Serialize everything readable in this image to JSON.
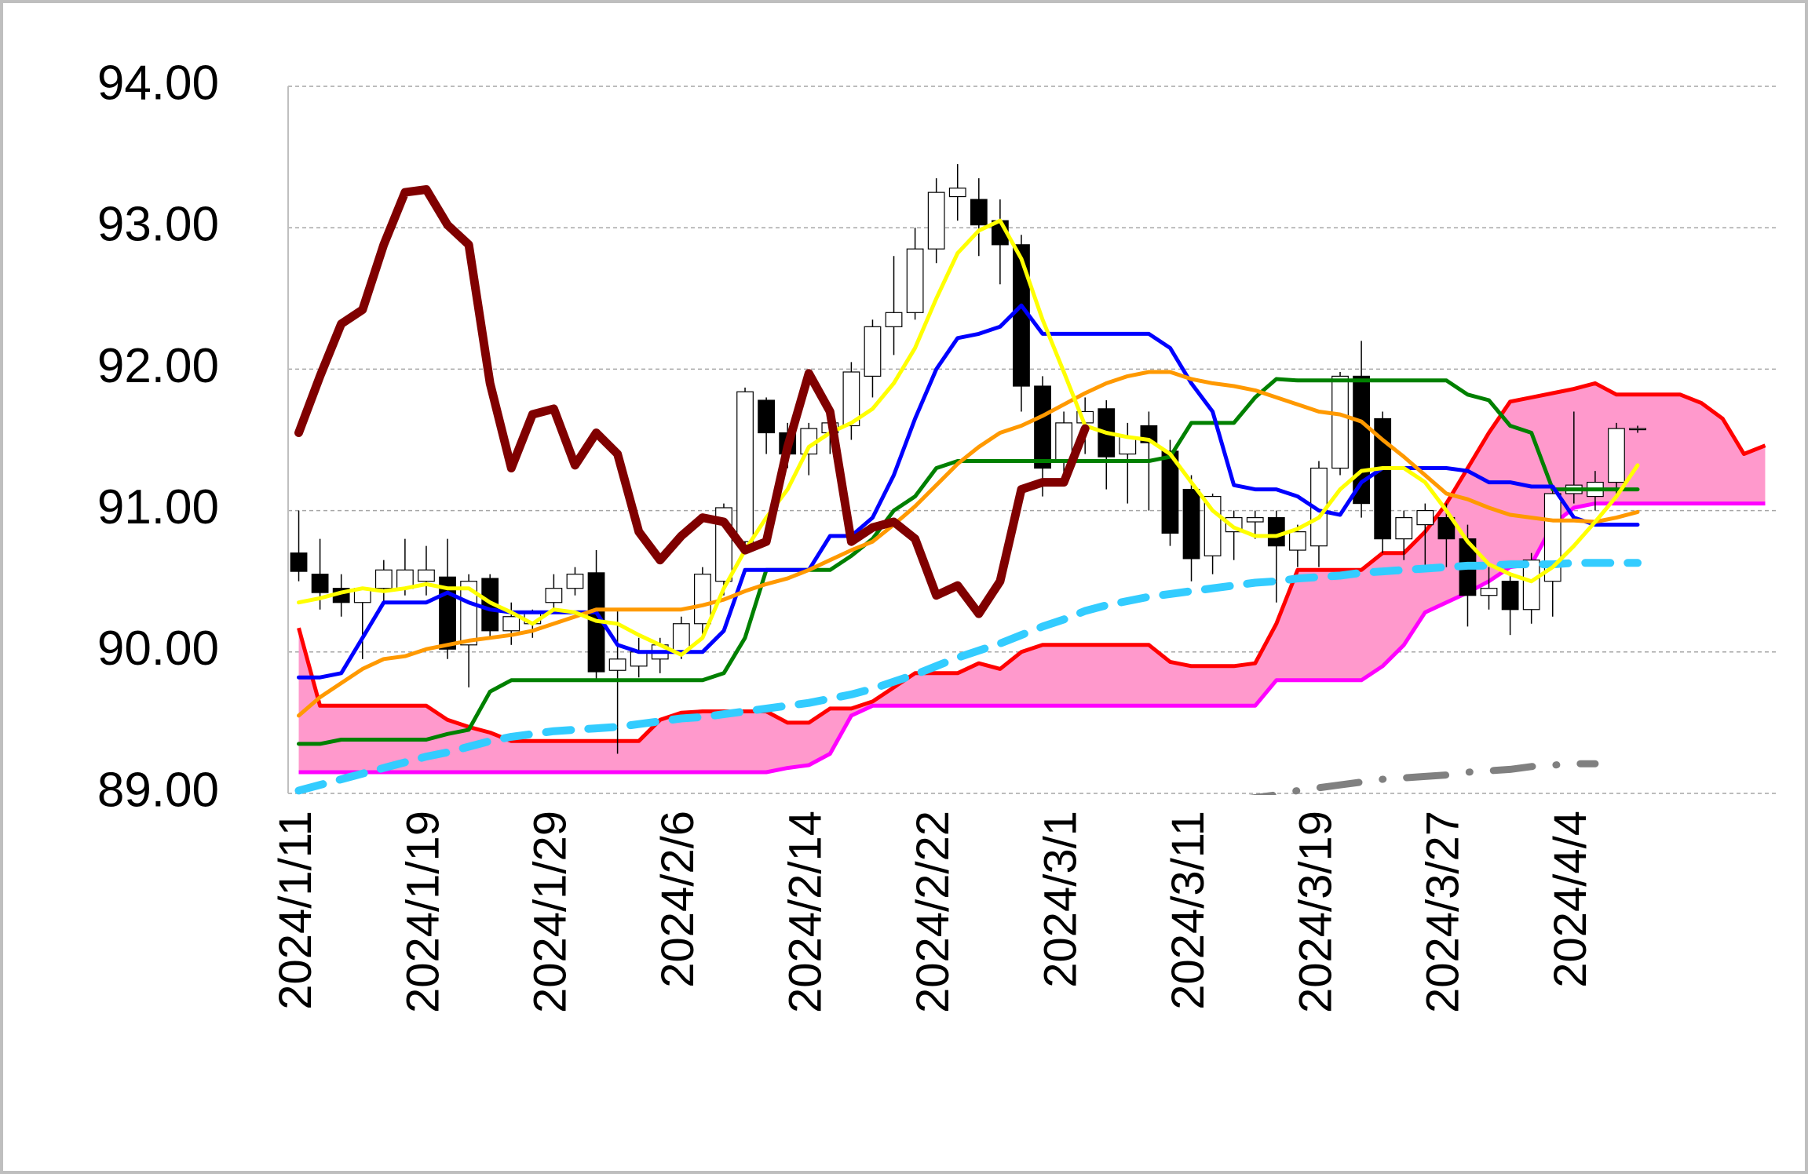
{
  "chart_data": {
    "type": "candlestick",
    "categories": [
      "2024/1/11",
      null,
      null,
      null,
      null,
      null,
      "2024/1/19",
      null,
      null,
      null,
      null,
      null,
      "2024/1/29",
      null,
      null,
      null,
      null,
      null,
      "2024/2/6",
      null,
      null,
      null,
      null,
      null,
      "2024/2/14",
      null,
      null,
      null,
      null,
      null,
      "2024/2/22",
      null,
      null,
      null,
      null,
      null,
      "2024/3/1",
      null,
      null,
      null,
      null,
      null,
      "2024/3/11",
      null,
      null,
      null,
      null,
      null,
      "2024/3/19",
      null,
      null,
      null,
      null,
      null,
      "2024/3/27",
      null,
      null,
      null,
      null,
      null,
      "2024/4/4",
      null,
      null,
      null,
      null,
      null,
      null,
      null,
      null,
      null
    ],
    "ylim": [
      89,
      94
    ],
    "yticks": [
      {
        "value": 89,
        "label": "89.00"
      },
      {
        "value": 90,
        "label": "90.00"
      },
      {
        "value": 91,
        "label": "91.00"
      },
      {
        "value": 92,
        "label": "92.00"
      },
      {
        "value": 93,
        "label": "93.00"
      },
      {
        "value": 94,
        "label": "94.00"
      }
    ],
    "grid": true,
    "cloud": {
      "color": "#ff99cc",
      "upper_color": "#ff0000",
      "lower_color": "#ff00ff",
      "upper": [
        90.17,
        89.62,
        89.62,
        89.62,
        89.62,
        89.62,
        89.62,
        89.52,
        89.47,
        89.43,
        89.37,
        89.37,
        89.37,
        89.37,
        89.37,
        89.37,
        89.37,
        89.52,
        89.57,
        89.58,
        89.58,
        89.58,
        89.58,
        89.5,
        89.5,
        89.6,
        89.6,
        89.65,
        89.75,
        89.85,
        89.85,
        89.85,
        89.92,
        89.88,
        90.0,
        90.05,
        90.05,
        90.05,
        90.05,
        90.05,
        90.05,
        89.93,
        89.9,
        89.9,
        89.9,
        89.92,
        90.2,
        90.58,
        90.58,
        90.58,
        90.58,
        90.7,
        90.7,
        90.85,
        91.05,
        91.3,
        91.55,
        91.77,
        91.8,
        91.83,
        91.86,
        91.9,
        91.82,
        91.82,
        91.82,
        91.82,
        91.76,
        91.65,
        91.4,
        91.46
      ],
      "lower": [
        89.15,
        89.15,
        89.15,
        89.15,
        89.15,
        89.15,
        89.15,
        89.15,
        89.15,
        89.15,
        89.15,
        89.15,
        89.15,
        89.15,
        89.15,
        89.15,
        89.15,
        89.15,
        89.15,
        89.15,
        89.15,
        89.15,
        89.15,
        89.18,
        89.2,
        89.28,
        89.55,
        89.62,
        89.62,
        89.62,
        89.62,
        89.62,
        89.62,
        89.62,
        89.62,
        89.62,
        89.62,
        89.62,
        89.62,
        89.62,
        89.62,
        89.62,
        89.62,
        89.62,
        89.62,
        89.62,
        89.8,
        89.8,
        89.8,
        89.8,
        89.8,
        89.9,
        90.05,
        90.28,
        90.35,
        90.42,
        90.5,
        90.6,
        90.62,
        90.9,
        91.02,
        91.05,
        91.05,
        91.05,
        91.05,
        91.05,
        91.05,
        91.05,
        91.05,
        91.05
      ]
    },
    "candles": {
      "up_color": "#ffffff",
      "down_color": "#000000",
      "open": [
        90.7,
        90.55,
        90.45,
        90.35,
        90.45,
        90.45,
        90.5,
        90.53,
        90.05,
        90.52,
        90.15,
        90.2,
        90.35,
        90.45,
        90.56,
        89.87,
        89.9,
        89.95,
        90.0,
        90.2,
        90.5,
        90.78,
        91.78,
        91.55,
        91.4,
        91.55,
        91.6,
        91.95,
        92.3,
        92.4,
        92.85,
        93.22,
        93.2,
        93.05,
        92.88,
        91.88,
        91.35,
        91.62,
        91.72,
        91.4,
        91.6,
        91.42,
        91.15,
        90.68,
        90.85,
        90.92,
        90.95,
        90.72,
        90.75,
        91.3,
        91.95,
        91.65,
        90.8,
        90.9,
        90.95,
        90.8,
        90.4,
        90.5,
        90.3,
        90.5,
        91.12,
        91.1,
        91.2,
        91.58,
        null,
        null,
        null,
        null,
        null,
        null
      ],
      "high": [
        91.0,
        90.8,
        90.55,
        90.45,
        90.65,
        90.8,
        90.75,
        90.8,
        90.55,
        90.55,
        90.35,
        90.3,
        90.55,
        90.6,
        90.72,
        90.3,
        90.1,
        90.1,
        90.25,
        90.6,
        91.05,
        91.87,
        91.8,
        91.62,
        91.62,
        91.65,
        92.05,
        92.35,
        92.8,
        93.0,
        93.35,
        93.45,
        93.35,
        93.2,
        92.95,
        91.95,
        91.7,
        91.8,
        91.78,
        91.62,
        91.7,
        91.5,
        91.25,
        91.12,
        91.0,
        91.0,
        91.0,
        90.9,
        91.35,
        91.98,
        92.2,
        91.7,
        91.0,
        91.05,
        91.05,
        90.9,
        90.6,
        90.55,
        90.7,
        91.15,
        91.7,
        91.28,
        91.62,
        91.6,
        null,
        null,
        null,
        null,
        null,
        null
      ],
      "low": [
        90.5,
        90.3,
        90.25,
        89.95,
        90.35,
        90.4,
        90.4,
        89.95,
        89.75,
        90.1,
        90.05,
        90.1,
        90.3,
        90.4,
        89.8,
        89.28,
        89.82,
        89.85,
        89.95,
        90.1,
        90.4,
        90.7,
        91.4,
        91.3,
        91.25,
        91.4,
        91.5,
        91.8,
        92.1,
        92.35,
        92.75,
        93.05,
        92.8,
        92.6,
        91.7,
        91.1,
        91.2,
        91.4,
        91.15,
        91.05,
        91.0,
        90.75,
        90.5,
        90.55,
        90.65,
        90.8,
        90.35,
        90.6,
        90.6,
        91.25,
        90.95,
        90.7,
        90.65,
        90.6,
        90.6,
        90.18,
        90.3,
        90.12,
        90.2,
        90.25,
        91.05,
        91.0,
        91.1,
        91.55,
        null,
        null,
        null,
        null,
        null,
        null
      ],
      "close": [
        90.57,
        90.42,
        90.35,
        90.45,
        90.58,
        90.58,
        90.58,
        90.02,
        90.5,
        90.15,
        90.25,
        90.28,
        90.45,
        90.55,
        89.86,
        89.95,
        90.0,
        90.05,
        90.2,
        90.55,
        91.02,
        91.84,
        91.55,
        91.4,
        91.58,
        91.62,
        91.98,
        92.3,
        92.4,
        92.85,
        93.25,
        93.28,
        93.02,
        92.88,
        91.88,
        91.3,
        91.62,
        91.7,
        91.38,
        91.52,
        91.48,
        90.84,
        90.66,
        91.1,
        90.95,
        90.95,
        90.75,
        90.85,
        91.3,
        91.95,
        91.05,
        90.8,
        90.95,
        91.0,
        90.8,
        90.4,
        90.45,
        90.3,
        90.65,
        91.12,
        91.18,
        91.2,
        91.58,
        91.58,
        null,
        null,
        null,
        null,
        null,
        null
      ]
    },
    "series": [
      {
        "color": "#808080",
        "style": "dashed",
        "values": [
          null,
          null,
          null,
          null,
          null,
          null,
          null,
          null,
          null,
          null,
          null,
          null,
          null,
          null,
          null,
          null,
          null,
          null,
          null,
          null,
          null,
          null,
          null,
          null,
          null,
          null,
          null,
          null,
          null,
          null,
          null,
          null,
          null,
          null,
          null,
          null,
          null,
          null,
          null,
          null,
          null,
          null,
          null,
          null,
          88.95,
          88.97,
          88.99,
          89.02,
          89.04,
          89.06,
          89.08,
          89.1,
          89.11,
          89.12,
          89.13,
          89.15,
          89.16,
          89.17,
          89.19,
          89.2,
          89.21,
          89.21,
          null,
          null,
          null,
          null,
          null,
          null,
          null,
          null
        ]
      },
      {
        "color": "#33ccff",
        "style": "dashed",
        "values": [
          89.02,
          89.06,
          89.1,
          89.14,
          89.18,
          89.22,
          89.26,
          89.29,
          89.33,
          89.37,
          89.4,
          89.42,
          89.44,
          89.45,
          89.46,
          89.47,
          89.49,
          89.51,
          89.53,
          89.54,
          89.56,
          89.58,
          89.6,
          89.62,
          89.64,
          89.67,
          89.7,
          89.74,
          89.79,
          89.84,
          89.9,
          89.96,
          90.01,
          90.06,
          90.12,
          90.18,
          90.23,
          90.29,
          90.33,
          90.36,
          90.39,
          90.41,
          90.43,
          90.45,
          90.47,
          90.49,
          90.5,
          90.52,
          90.53,
          90.54,
          90.56,
          90.57,
          90.58,
          90.59,
          90.6,
          90.61,
          90.61,
          90.62,
          90.62,
          90.62,
          90.63,
          90.63,
          90.63,
          90.63,
          null,
          null,
          null,
          null,
          null,
          null
        ]
      },
      {
        "color": "#008000",
        "style": "solid",
        "values": [
          89.35,
          89.35,
          89.38,
          89.38,
          89.38,
          89.38,
          89.38,
          89.42,
          89.45,
          89.72,
          89.8,
          89.8,
          89.8,
          89.8,
          89.8,
          89.8,
          89.8,
          89.8,
          89.8,
          89.8,
          89.85,
          90.1,
          90.58,
          90.58,
          90.58,
          90.58,
          90.68,
          90.8,
          91.0,
          91.1,
          91.3,
          91.35,
          91.35,
          91.35,
          91.35,
          91.35,
          91.35,
          91.35,
          91.35,
          91.35,
          91.35,
          91.38,
          91.62,
          91.62,
          91.62,
          91.8,
          91.93,
          91.92,
          91.92,
          91.92,
          91.92,
          91.92,
          91.92,
          91.92,
          91.92,
          91.82,
          91.78,
          91.6,
          91.55,
          91.15,
          91.15,
          91.15,
          91.15,
          91.15,
          null,
          null,
          null,
          null,
          null,
          null
        ]
      },
      {
        "color": "#0000ff",
        "style": "solid",
        "values": [
          89.82,
          89.82,
          89.85,
          90.1,
          90.35,
          90.35,
          90.35,
          90.42,
          90.35,
          90.3,
          90.28,
          90.28,
          90.28,
          90.28,
          90.28,
          90.05,
          90.0,
          90.0,
          90.0,
          90.0,
          90.15,
          90.58,
          90.58,
          90.58,
          90.58,
          90.82,
          90.82,
          90.95,
          91.25,
          91.65,
          92.0,
          92.22,
          92.25,
          92.3,
          92.45,
          92.25,
          92.25,
          92.25,
          92.25,
          92.25,
          92.25,
          92.15,
          91.9,
          91.7,
          91.18,
          91.15,
          91.15,
          91.1,
          91.0,
          90.97,
          91.2,
          91.3,
          91.3,
          91.3,
          91.3,
          91.28,
          91.2,
          91.2,
          91.17,
          91.17,
          90.95,
          90.9,
          90.9,
          90.9,
          null,
          null,
          null,
          null,
          null,
          null
        ]
      },
      {
        "color": "#ff9900",
        "style": "solid",
        "values": [
          89.55,
          89.68,
          89.78,
          89.88,
          89.95,
          89.97,
          90.02,
          90.05,
          90.08,
          90.1,
          90.12,
          90.15,
          90.2,
          90.25,
          90.3,
          90.3,
          90.3,
          90.3,
          90.3,
          90.33,
          90.37,
          90.43,
          90.48,
          90.52,
          90.58,
          90.65,
          90.72,
          90.78,
          90.9,
          91.03,
          91.18,
          91.33,
          91.45,
          91.55,
          91.6,
          91.67,
          91.75,
          91.83,
          91.9,
          91.95,
          91.98,
          91.98,
          91.93,
          91.9,
          91.88,
          91.85,
          91.8,
          91.75,
          91.7,
          91.68,
          91.63,
          91.5,
          91.38,
          91.25,
          91.12,
          91.08,
          91.02,
          90.97,
          90.95,
          90.93,
          90.93,
          90.92,
          90.95,
          90.99,
          null,
          null,
          null,
          null,
          null,
          null
        ]
      },
      {
        "color": "#ffff00",
        "style": "solid",
        "values": [
          90.35,
          90.38,
          90.42,
          90.45,
          90.43,
          90.45,
          90.48,
          90.45,
          90.45,
          90.35,
          90.28,
          90.2,
          90.3,
          90.28,
          90.22,
          90.2,
          90.12,
          90.05,
          89.98,
          90.1,
          90.45,
          90.72,
          90.95,
          91.15,
          91.45,
          91.55,
          91.62,
          91.72,
          91.9,
          92.15,
          92.5,
          92.82,
          92.98,
          93.05,
          92.78,
          92.35,
          91.98,
          91.6,
          91.55,
          91.52,
          91.5,
          91.4,
          91.2,
          91.0,
          90.88,
          90.82,
          90.82,
          90.87,
          90.95,
          91.15,
          91.28,
          91.3,
          91.3,
          91.2,
          91.0,
          90.78,
          90.62,
          90.55,
          90.5,
          90.6,
          90.75,
          90.92,
          91.1,
          91.32,
          null,
          null,
          null,
          null,
          null,
          null
        ]
      },
      {
        "color": "#800000",
        "style": "solid",
        "values": [
          91.55,
          91.95,
          92.32,
          92.42,
          92.88,
          93.25,
          93.27,
          93.02,
          92.88,
          91.9,
          91.3,
          91.68,
          91.72,
          91.32,
          91.55,
          91.4,
          90.85,
          90.65,
          90.82,
          90.95,
          90.92,
          90.72,
          90.78,
          91.45,
          91.97,
          91.7,
          90.78,
          90.88,
          90.92,
          90.8,
          90.4,
          90.47,
          90.27,
          90.5,
          91.15,
          91.2,
          91.2,
          91.58,
          null,
          null,
          null,
          null,
          null,
          null,
          null,
          null,
          null,
          null,
          null,
          null,
          null,
          null,
          null,
          null,
          null,
          null,
          null,
          null,
          null,
          null,
          null,
          null,
          null,
          null,
          null,
          null,
          null,
          null,
          null,
          null
        ]
      }
    ]
  }
}
